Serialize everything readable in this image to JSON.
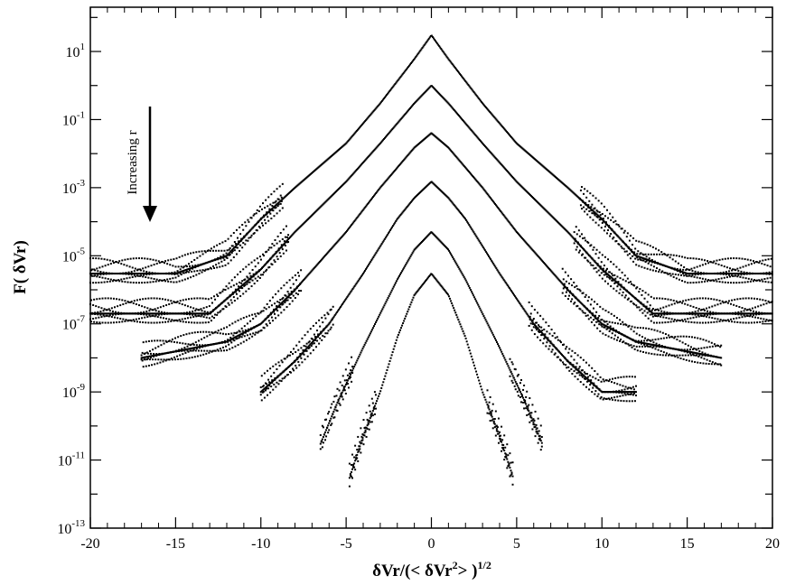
{
  "chart_data": {
    "type": "scatter",
    "title": "",
    "xlabel": {
      "main": "δVr/(< δVr",
      "sup1": "2",
      "mid": "> )",
      "sup2": "1/2"
    },
    "ylabel": "F( δVr)",
    "xlim": [
      -20,
      20
    ],
    "ylim_log10": [
      -13,
      2.3
    ],
    "y_scale": "log",
    "grid": false,
    "x_ticks": [
      -20,
      -15,
      -10,
      -5,
      0,
      5,
      10,
      15,
      20
    ],
    "x_tick_labels": [
      "-20",
      "-15",
      "-10",
      "-5",
      "0",
      "5",
      "10",
      "15",
      "20"
    ],
    "y_ticks_log10": [
      1,
      -1,
      -3,
      -5,
      -7,
      -9,
      -11,
      -13
    ],
    "y_tick_labels": [
      {
        "base": "10",
        "exp": "1"
      },
      {
        "base": "10",
        "exp": "-1"
      },
      {
        "base": "10",
        "exp": "-3"
      },
      {
        "base": "10",
        "exp": "-5"
      },
      {
        "base": "10",
        "exp": "-7"
      },
      {
        "base": "10",
        "exp": "-9"
      },
      {
        "base": "10",
        "exp": "-11"
      },
      {
        "base": "10",
        "exp": "-13"
      }
    ],
    "annotation": {
      "text": "Increasing r",
      "arrow": "down"
    },
    "series": [
      {
        "peak": 30,
        "x_range": [
          -20,
          20
        ],
        "floor": 3e-06,
        "shape_power": 0.55,
        "points": [
          [
            -20,
            3e-06
          ],
          [
            -15,
            3e-06
          ],
          [
            -12,
            1e-05
          ],
          [
            -10,
            0.00012
          ],
          [
            -8,
            0.001
          ],
          [
            -5,
            0.02
          ],
          [
            -3,
            0.3
          ],
          [
            -1,
            6
          ],
          [
            0,
            30
          ],
          [
            1,
            6
          ],
          [
            3,
            0.3
          ],
          [
            5,
            0.02
          ],
          [
            8,
            0.001
          ],
          [
            10,
            0.00012
          ],
          [
            12,
            1e-05
          ],
          [
            15,
            3e-06
          ],
          [
            20,
            3e-06
          ]
        ]
      },
      {
        "peak": 1,
        "x_range": [
          -20,
          20
        ],
        "floor": 2e-07,
        "shape_power": 0.6,
        "points": [
          [
            -20,
            2e-07
          ],
          [
            -13,
            2e-07
          ],
          [
            -10,
            4e-06
          ],
          [
            -8,
            5e-05
          ],
          [
            -5,
            0.0015
          ],
          [
            -3,
            0.02
          ],
          [
            -1,
            0.3
          ],
          [
            0,
            1
          ],
          [
            1,
            0.3
          ],
          [
            3,
            0.02
          ],
          [
            5,
            0.0015
          ],
          [
            8,
            5e-05
          ],
          [
            10,
            4e-06
          ],
          [
            13,
            2e-07
          ],
          [
            20,
            2e-07
          ]
        ]
      },
      {
        "peak": 0.04,
        "x_range": [
          -17,
          17
        ],
        "floor": 1e-08,
        "shape_power": 0.7,
        "points": [
          [
            -17,
            1e-08
          ],
          [
            -12,
            3e-08
          ],
          [
            -10,
            1e-07
          ],
          [
            -8,
            1e-06
          ],
          [
            -5,
            5e-05
          ],
          [
            -3,
            0.001
          ],
          [
            -1,
            0.015
          ],
          [
            0,
            0.04
          ],
          [
            1,
            0.015
          ],
          [
            3,
            0.001
          ],
          [
            5,
            5e-05
          ],
          [
            8,
            1e-06
          ],
          [
            10,
            1e-07
          ],
          [
            12,
            3e-08
          ],
          [
            17,
            1e-08
          ]
        ]
      },
      {
        "peak": 0.0015,
        "x_range": [
          -10,
          12
        ],
        "floor": 1e-09,
        "shape_power": 0.85,
        "points": [
          [
            -10,
            1e-09
          ],
          [
            -8,
            8e-09
          ],
          [
            -6,
            1e-07
          ],
          [
            -4,
            3e-06
          ],
          [
            -2,
            0.00012
          ],
          [
            -1,
            0.0005
          ],
          [
            0,
            0.0015
          ],
          [
            1,
            0.0005
          ],
          [
            2,
            0.00012
          ],
          [
            4,
            3e-06
          ],
          [
            6,
            1e-07
          ],
          [
            8,
            8e-09
          ],
          [
            10,
            1e-09
          ],
          [
            12,
            1e-09
          ]
        ]
      },
      {
        "peak": 5e-05,
        "x_range": [
          -6.5,
          6.5
        ],
        "floor": 3e-11,
        "shape_power": 1.15,
        "points": [
          [
            -6.5,
            3e-11
          ],
          [
            -5.5,
            5e-10
          ],
          [
            -4,
            2e-08
          ],
          [
            -2,
            2e-06
          ],
          [
            -1,
            1.5e-05
          ],
          [
            0,
            5e-05
          ],
          [
            1,
            1.5e-05
          ],
          [
            2,
            2e-06
          ],
          [
            4,
            2e-08
          ],
          [
            5.5,
            5e-10
          ],
          [
            6.5,
            3e-11
          ]
        ]
      },
      {
        "peak": 3e-06,
        "x_range": [
          -4.8,
          4.8
        ],
        "floor": 3e-12,
        "shape_power": 1.5,
        "points": [
          [
            -4.8,
            3e-12
          ],
          [
            -4,
            5e-11
          ],
          [
            -3,
            1e-09
          ],
          [
            -2,
            4e-08
          ],
          [
            -1,
            7e-07
          ],
          [
            0,
            3e-06
          ],
          [
            1,
            7e-07
          ],
          [
            2,
            4e-08
          ],
          [
            3,
            1e-09
          ],
          [
            4,
            5e-11
          ],
          [
            4.8,
            3e-12
          ]
        ]
      }
    ]
  }
}
